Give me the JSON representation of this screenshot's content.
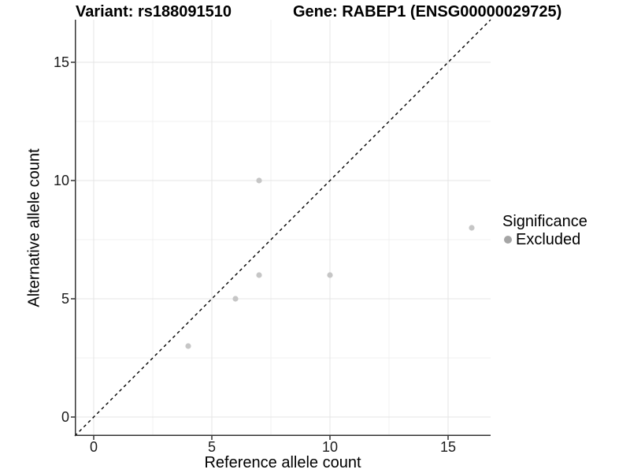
{
  "chart_data": {
    "type": "scatter",
    "title_left": "Variant: rs188091510",
    "title_right": "Gene: RABEP1 (ENSG00000029725)",
    "xlabel": "Reference allele count",
    "ylabel": "Alternative allele count",
    "xlim": [
      -0.8,
      16.8
    ],
    "ylim": [
      -0.8,
      16.8
    ],
    "major_ticks": [
      0,
      5,
      10,
      15
    ],
    "minor_gridlines": [
      2.5,
      7.5,
      12.5
    ],
    "grid": true,
    "points": [
      {
        "x": 4,
        "y": 3
      },
      {
        "x": 6,
        "y": 5
      },
      {
        "x": 7,
        "y": 6
      },
      {
        "x": 7,
        "y": 10
      },
      {
        "x": 10,
        "y": 6
      },
      {
        "x": 16,
        "y": 8
      }
    ],
    "identity_line": {
      "slope": 1,
      "intercept": 0,
      "style": "dashed",
      "color": "#000000"
    },
    "legend": {
      "title": "Significance",
      "position": "right",
      "items": [
        {
          "label": "Excluded",
          "color": "#a5a5a5"
        }
      ]
    },
    "colors": {
      "point": "#c6c6c6",
      "grid_major": "#e4e4e4",
      "grid_minor": "#f1f1f1",
      "axis": "#333333",
      "tick": "#333333",
      "text": "#000000"
    },
    "point_radius": 3.6
  }
}
